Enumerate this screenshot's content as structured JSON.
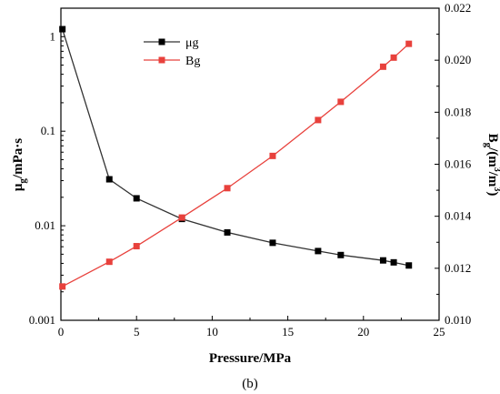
{
  "chart_data": {
    "type": "line",
    "xlabel": "Pressure/MPa",
    "xlim": [
      0,
      25
    ],
    "x_ticks": [
      0,
      5,
      10,
      15,
      20,
      25
    ],
    "ylabel_left": "μg/mPa·s",
    "ylabel_left_parts": {
      "main": "μ",
      "sub": "g",
      "rest": "/mPa·s"
    },
    "ylim_left": [
      0.001,
      2
    ],
    "y_left_scale": "log",
    "y_left_ticks": [
      0.001,
      0.01,
      0.1,
      1
    ],
    "y_left_tick_labels": [
      "0.001",
      "0.01",
      "0.1",
      "1"
    ],
    "ylabel_right": "Bg/(m3/m3)",
    "ylabel_right_parts": {
      "main": "B",
      "sub": "g",
      "rest1": "/(m",
      "sup1": "3",
      "rest2": "/m",
      "sup2": "3",
      "rest3": ")"
    },
    "ylim_right": [
      0.01,
      0.022
    ],
    "y_right_ticks": [
      0.01,
      0.012,
      0.014,
      0.016,
      0.018,
      0.02,
      0.022
    ],
    "y_right_tick_labels": [
      "0.010",
      "0.012",
      "0.014",
      "0.016",
      "0.018",
      "0.020",
      "0.022"
    ],
    "caption": "(b)",
    "legend_position": "top-center",
    "series": [
      {
        "name": "μg",
        "axis": "left",
        "color": "#000000",
        "marker": "square",
        "x": [
          0.1,
          3.2,
          5.0,
          8.0,
          11.0,
          14.0,
          17.0,
          18.5,
          21.3,
          22.0,
          23.0
        ],
        "y": [
          1.2,
          0.031,
          0.0195,
          0.0118,
          0.0085,
          0.0066,
          0.0054,
          0.0049,
          0.0043,
          0.0041,
          0.0038
        ]
      },
      {
        "name": "Bg",
        "axis": "right",
        "color": "#e8413c",
        "marker": "square",
        "x": [
          0.1,
          3.2,
          5.0,
          8.0,
          11.0,
          14.0,
          17.0,
          18.5,
          21.3,
          22.0,
          23.0
        ],
        "y": [
          0.0113,
          0.01225,
          0.01285,
          0.01395,
          0.01508,
          0.01632,
          0.0177,
          0.0184,
          0.01975,
          0.0201,
          0.02063
        ]
      }
    ]
  }
}
